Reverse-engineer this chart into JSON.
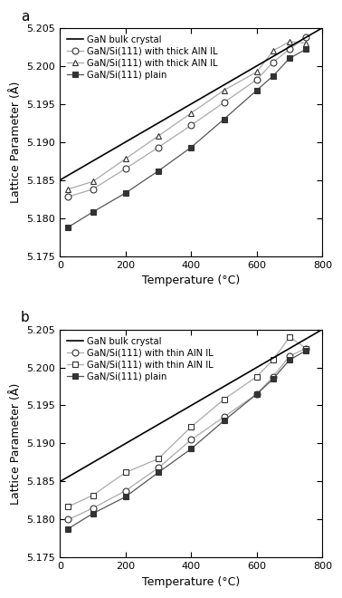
{
  "panel_a_label": "a",
  "panel_b_label": "b",
  "xlim": [
    0,
    800
  ],
  "ylim": [
    5.175,
    5.205
  ],
  "xticks": [
    0,
    200,
    400,
    600,
    800
  ],
  "yticks": [
    5.175,
    5.18,
    5.185,
    5.19,
    5.195,
    5.2,
    5.205
  ],
  "xlabel": "Temperature (°C)",
  "ylabel": "Lattice Parameter (Å)",
  "bulk_line": {
    "x": [
      0,
      800
    ],
    "y": [
      5.185,
      5.205
    ],
    "label": "GaN bulk crystal",
    "color": "#000000",
    "lw": 1.2,
    "ls": "-"
  },
  "panel_a": {
    "series": [
      {
        "label": "GaN/Si(111) with thick AlN IL",
        "marker": "o",
        "marker_fill": "white",
        "line_color": "#aaaaaa",
        "marker_color": "#333333",
        "x": [
          25,
          100,
          200,
          300,
          400,
          500,
          600,
          650,
          700,
          750
        ],
        "y": [
          5.1828,
          5.1838,
          5.1865,
          5.1893,
          5.1922,
          5.1952,
          5.1982,
          5.2005,
          5.2022,
          5.2038
        ]
      },
      {
        "label": "GaN/Si(111) with thick AlN IL",
        "marker": "^",
        "marker_fill": "white",
        "line_color": "#aaaaaa",
        "marker_color": "#333333",
        "x": [
          25,
          100,
          200,
          300,
          400,
          500,
          600,
          650,
          700,
          750
        ],
        "y": [
          5.1838,
          5.1848,
          5.1878,
          5.1908,
          5.1938,
          5.1968,
          5.1992,
          5.202,
          5.2032,
          5.203
        ]
      },
      {
        "label": "GaN/Si(111) plain",
        "marker": "s",
        "marker_fill": "#333333",
        "line_color": "#555555",
        "marker_color": "#333333",
        "x": [
          25,
          100,
          200,
          300,
          400,
          500,
          600,
          650,
          700,
          750
        ],
        "y": [
          5.1788,
          5.1808,
          5.1833,
          5.1862,
          5.1893,
          5.193,
          5.1968,
          5.1987,
          5.201,
          5.2022
        ]
      }
    ]
  },
  "panel_b": {
    "series": [
      {
        "label": "GaN/Si(111) with thin AlN IL",
        "marker": "o",
        "marker_fill": "white",
        "line_color": "#aaaaaa",
        "marker_color": "#333333",
        "x": [
          25,
          100,
          200,
          300,
          400,
          500,
          600,
          650,
          700,
          750
        ],
        "y": [
          5.18,
          5.1815,
          5.1838,
          5.1868,
          5.1905,
          5.1935,
          5.1965,
          5.1988,
          5.2015,
          5.2025
        ]
      },
      {
        "label": "GaN/Si(111) with thin AlN IL",
        "marker": "s",
        "marker_fill": "white",
        "line_color": "#aaaaaa",
        "marker_color": "#333333",
        "x": [
          25,
          100,
          200,
          300,
          400,
          500,
          600,
          650,
          700,
          750
        ],
        "y": [
          5.1817,
          5.1832,
          5.1862,
          5.188,
          5.1922,
          5.1958,
          5.1988,
          5.201,
          5.204,
          5.2025
        ]
      },
      {
        "label": "GaN/Si(111) plain",
        "marker": "s",
        "marker_fill": "#333333",
        "line_color": "#555555",
        "marker_color": "#333333",
        "x": [
          25,
          100,
          200,
          300,
          400,
          500,
          600,
          650,
          700,
          750
        ],
        "y": [
          5.1788,
          5.1808,
          5.183,
          5.1862,
          5.1893,
          5.193,
          5.1965,
          5.1985,
          5.201,
          5.2022
        ]
      }
    ]
  }
}
